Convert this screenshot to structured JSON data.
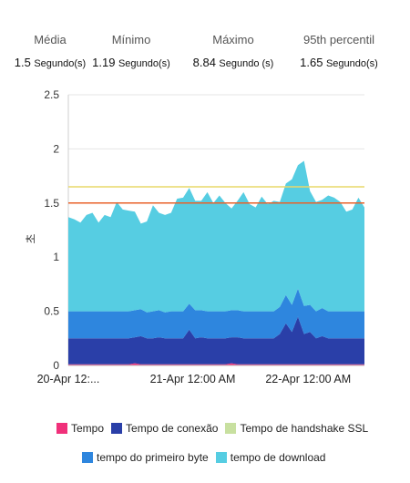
{
  "stats": [
    {
      "label": "Média",
      "value": "1.5",
      "unit": "Segundo(s)"
    },
    {
      "label": "Mínimo",
      "value": "1.19",
      "unit": "Segundo(s)"
    },
    {
      "label": "Máximo",
      "value": "8.84",
      "unit": "Segundo (s)"
    },
    {
      "label": "95th percentil",
      "value": "1.65",
      "unit": "Segundo(s)"
    }
  ],
  "chart_data": {
    "type": "area",
    "title": "",
    "xlabel": "",
    "ylabel": "초",
    "ylim": [
      0,
      2.5
    ],
    "yticks": [
      "0",
      "0.5",
      "1",
      "1.5",
      "2",
      "2.5"
    ],
    "xticks": [
      {
        "label": "20-Apr 12:...",
        "pos": 0.0
      },
      {
        "label": "21-Apr 12:00 AM",
        "pos": 0.42
      },
      {
        "label": "22-Apr 12:00 AM",
        "pos": 0.81
      }
    ],
    "grid": true,
    "reference_lines": [
      {
        "value": 1.5,
        "color": "#e8622a"
      },
      {
        "value": 1.65,
        "color": "#e8d86a"
      }
    ],
    "series": [
      {
        "name": "Tempo",
        "color": "#f0307a",
        "values": [
          0.01,
          0.01,
          0.01,
          0.01,
          0.01,
          0.01,
          0.01,
          0.01,
          0.01,
          0.01,
          0.01,
          0.02,
          0.01,
          0.01,
          0.01,
          0.01,
          0.01,
          0.01,
          0.01,
          0.01,
          0.01,
          0.01,
          0.01,
          0.01,
          0.01,
          0.01,
          0.01,
          0.02,
          0.01,
          0.01,
          0.01,
          0.01,
          0.01,
          0.01,
          0.01,
          0.01,
          0.01,
          0.01,
          0.01,
          0.01,
          0.01,
          0.01,
          0.01,
          0.01,
          0.01,
          0.01,
          0.01,
          0.01,
          0.01,
          0.01
        ]
      },
      {
        "name": "Tempo de conexão",
        "color": "#2a3fa8",
        "values": [
          0.24,
          0.24,
          0.24,
          0.24,
          0.24,
          0.24,
          0.24,
          0.24,
          0.24,
          0.24,
          0.24,
          0.24,
          0.26,
          0.24,
          0.24,
          0.25,
          0.24,
          0.24,
          0.24,
          0.24,
          0.32,
          0.24,
          0.25,
          0.24,
          0.24,
          0.24,
          0.24,
          0.24,
          0.25,
          0.24,
          0.24,
          0.24,
          0.24,
          0.24,
          0.24,
          0.28,
          0.38,
          0.3,
          0.44,
          0.28,
          0.3,
          0.24,
          0.26,
          0.24,
          0.24,
          0.24,
          0.24,
          0.24,
          0.24,
          0.24
        ]
      },
      {
        "name": "Tempo de handshake SSL",
        "color": "#c8e0a0",
        "values": [
          0,
          0,
          0,
          0,
          0,
          0,
          0,
          0,
          0,
          0,
          0,
          0,
          0,
          0,
          0,
          0,
          0,
          0,
          0,
          0,
          0,
          0,
          0,
          0,
          0,
          0,
          0,
          0,
          0,
          0,
          0,
          0,
          0,
          0,
          0,
          0,
          0,
          0,
          0,
          0,
          0,
          0,
          0,
          0,
          0,
          0,
          0,
          0,
          0,
          0
        ]
      },
      {
        "name": "tempo do primeiro byte",
        "color": "#2e86de",
        "values": [
          0.25,
          0.25,
          0.25,
          0.25,
          0.25,
          0.25,
          0.25,
          0.25,
          0.25,
          0.25,
          0.25,
          0.25,
          0.25,
          0.24,
          0.25,
          0.25,
          0.24,
          0.25,
          0.25,
          0.25,
          0.24,
          0.26,
          0.25,
          0.25,
          0.25,
          0.25,
          0.25,
          0.25,
          0.25,
          0.25,
          0.25,
          0.25,
          0.25,
          0.25,
          0.25,
          0.25,
          0.26,
          0.25,
          0.26,
          0.26,
          0.25,
          0.25,
          0.26,
          0.25,
          0.25,
          0.25,
          0.25,
          0.25,
          0.25,
          0.25
        ]
      },
      {
        "name": "tempo de download",
        "color": "#56cde2",
        "values": [
          0.87,
          0.85,
          0.82,
          0.89,
          0.91,
          0.82,
          0.89,
          0.87,
          1.01,
          0.94,
          0.93,
          0.91,
          0.79,
          0.84,
          0.98,
          0.9,
          0.9,
          0.91,
          1.04,
          1.05,
          1.07,
          1.01,
          1.01,
          1.1,
          1.0,
          1.07,
          1.0,
          0.94,
          1.01,
          1.1,
          0.99,
          0.96,
          1.06,
          0.99,
          1.02,
          0.97,
          1.03,
          1.16,
          1.14,
          1.34,
          1.05,
          1.01,
          1.0,
          1.07,
          1.05,
          1.01,
          0.92,
          0.94,
          1.05,
          0.96
        ]
      }
    ]
  }
}
